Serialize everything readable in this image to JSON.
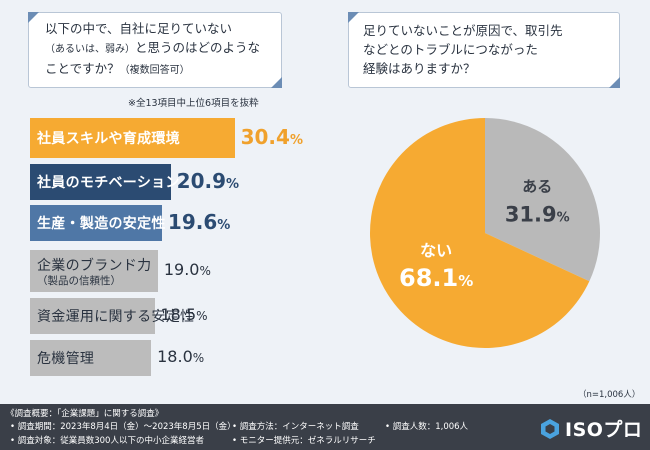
{
  "questions": {
    "left": {
      "line1": "以下の中で、自社に足りていない",
      "line2_small": "（あるいは、弱み）",
      "line2_main": "と思うのはどのような",
      "line3_main": "ことですか？",
      "line3_small": "（複数回答可）"
    },
    "right": {
      "line1": "足りていないことが原因で、取引先",
      "line2": "などとのトラブルにつながった",
      "line3": "経験はありますか？"
    }
  },
  "note": "※全13項目中上位6項目を抜粋",
  "sample_size": "（n=1,006人）",
  "colors": {
    "orange": "#f6aa32",
    "navy": "#2b4b72",
    "steel": "#4f77a6",
    "gray": "#bcbcbc",
    "pie_yes": "#b9b9b9",
    "pie_no": "#f6aa32"
  },
  "chart_data": [
    {
      "type": "bar",
      "orientation": "horizontal",
      "title": "以下の中で、自社に足りていない（あるいは、弱み）と思うのはどのようなことですか？（複数回答可）",
      "categories": [
        "社員スキルや育成環境",
        "社員のモチベーション",
        "生産・製造の安定性",
        "企業のブランド力（製品の信頼性）",
        "資金運用に関する安定性",
        "危機管理"
      ],
      "values": [
        30.4,
        20.9,
        19.6,
        19.0,
        18.5,
        18.0
      ],
      "value_labels": [
        {
          "num": "30.4",
          "unit": "%"
        },
        {
          "num": "20.9",
          "unit": "%"
        },
        {
          "num": "19.6",
          "unit": "%"
        },
        {
          "num": "19.0",
          "unit": "%"
        },
        {
          "num": "18.5",
          "unit": "%"
        },
        {
          "num": "18.0",
          "unit": "%"
        }
      ],
      "bar_labels": [
        {
          "main": "社員スキルや育成環境",
          "sub": ""
        },
        {
          "main": "社員のモチベーション",
          "sub": ""
        },
        {
          "main": "生産・製造の安定性",
          "sub": ""
        },
        {
          "main": "企業のブランド力",
          "sub": "（製品の信頼性）"
        },
        {
          "main": "資金運用に関する安定性",
          "sub": ""
        },
        {
          "main": "危機管理",
          "sub": ""
        }
      ],
      "unit": "%"
    },
    {
      "type": "pie",
      "title": "足りていないことが原因で、取引先などとのトラブルにつながった経験はありますか？",
      "slices": [
        {
          "label": "ある",
          "value": 31.9,
          "num": "31.9",
          "unit": "%"
        },
        {
          "label": "ない",
          "value": 68.1,
          "num": "68.1",
          "unit": "%"
        }
      ]
    }
  ],
  "footer": {
    "survey_title": "《調査概要：「企業課題」に関する調査》",
    "period": "• 調査期間：2023年8月4日（金）～2023年8月5日（金）",
    "method": "• 調査方法：インターネット調査",
    "count": "• 調査人数：1,006人",
    "target": "• 調査対象：従業員数300人以下の中小企業経営者",
    "provider": "• モニター提供元：ゼネラルリサーチ",
    "logo_text": "ISOプロ"
  }
}
